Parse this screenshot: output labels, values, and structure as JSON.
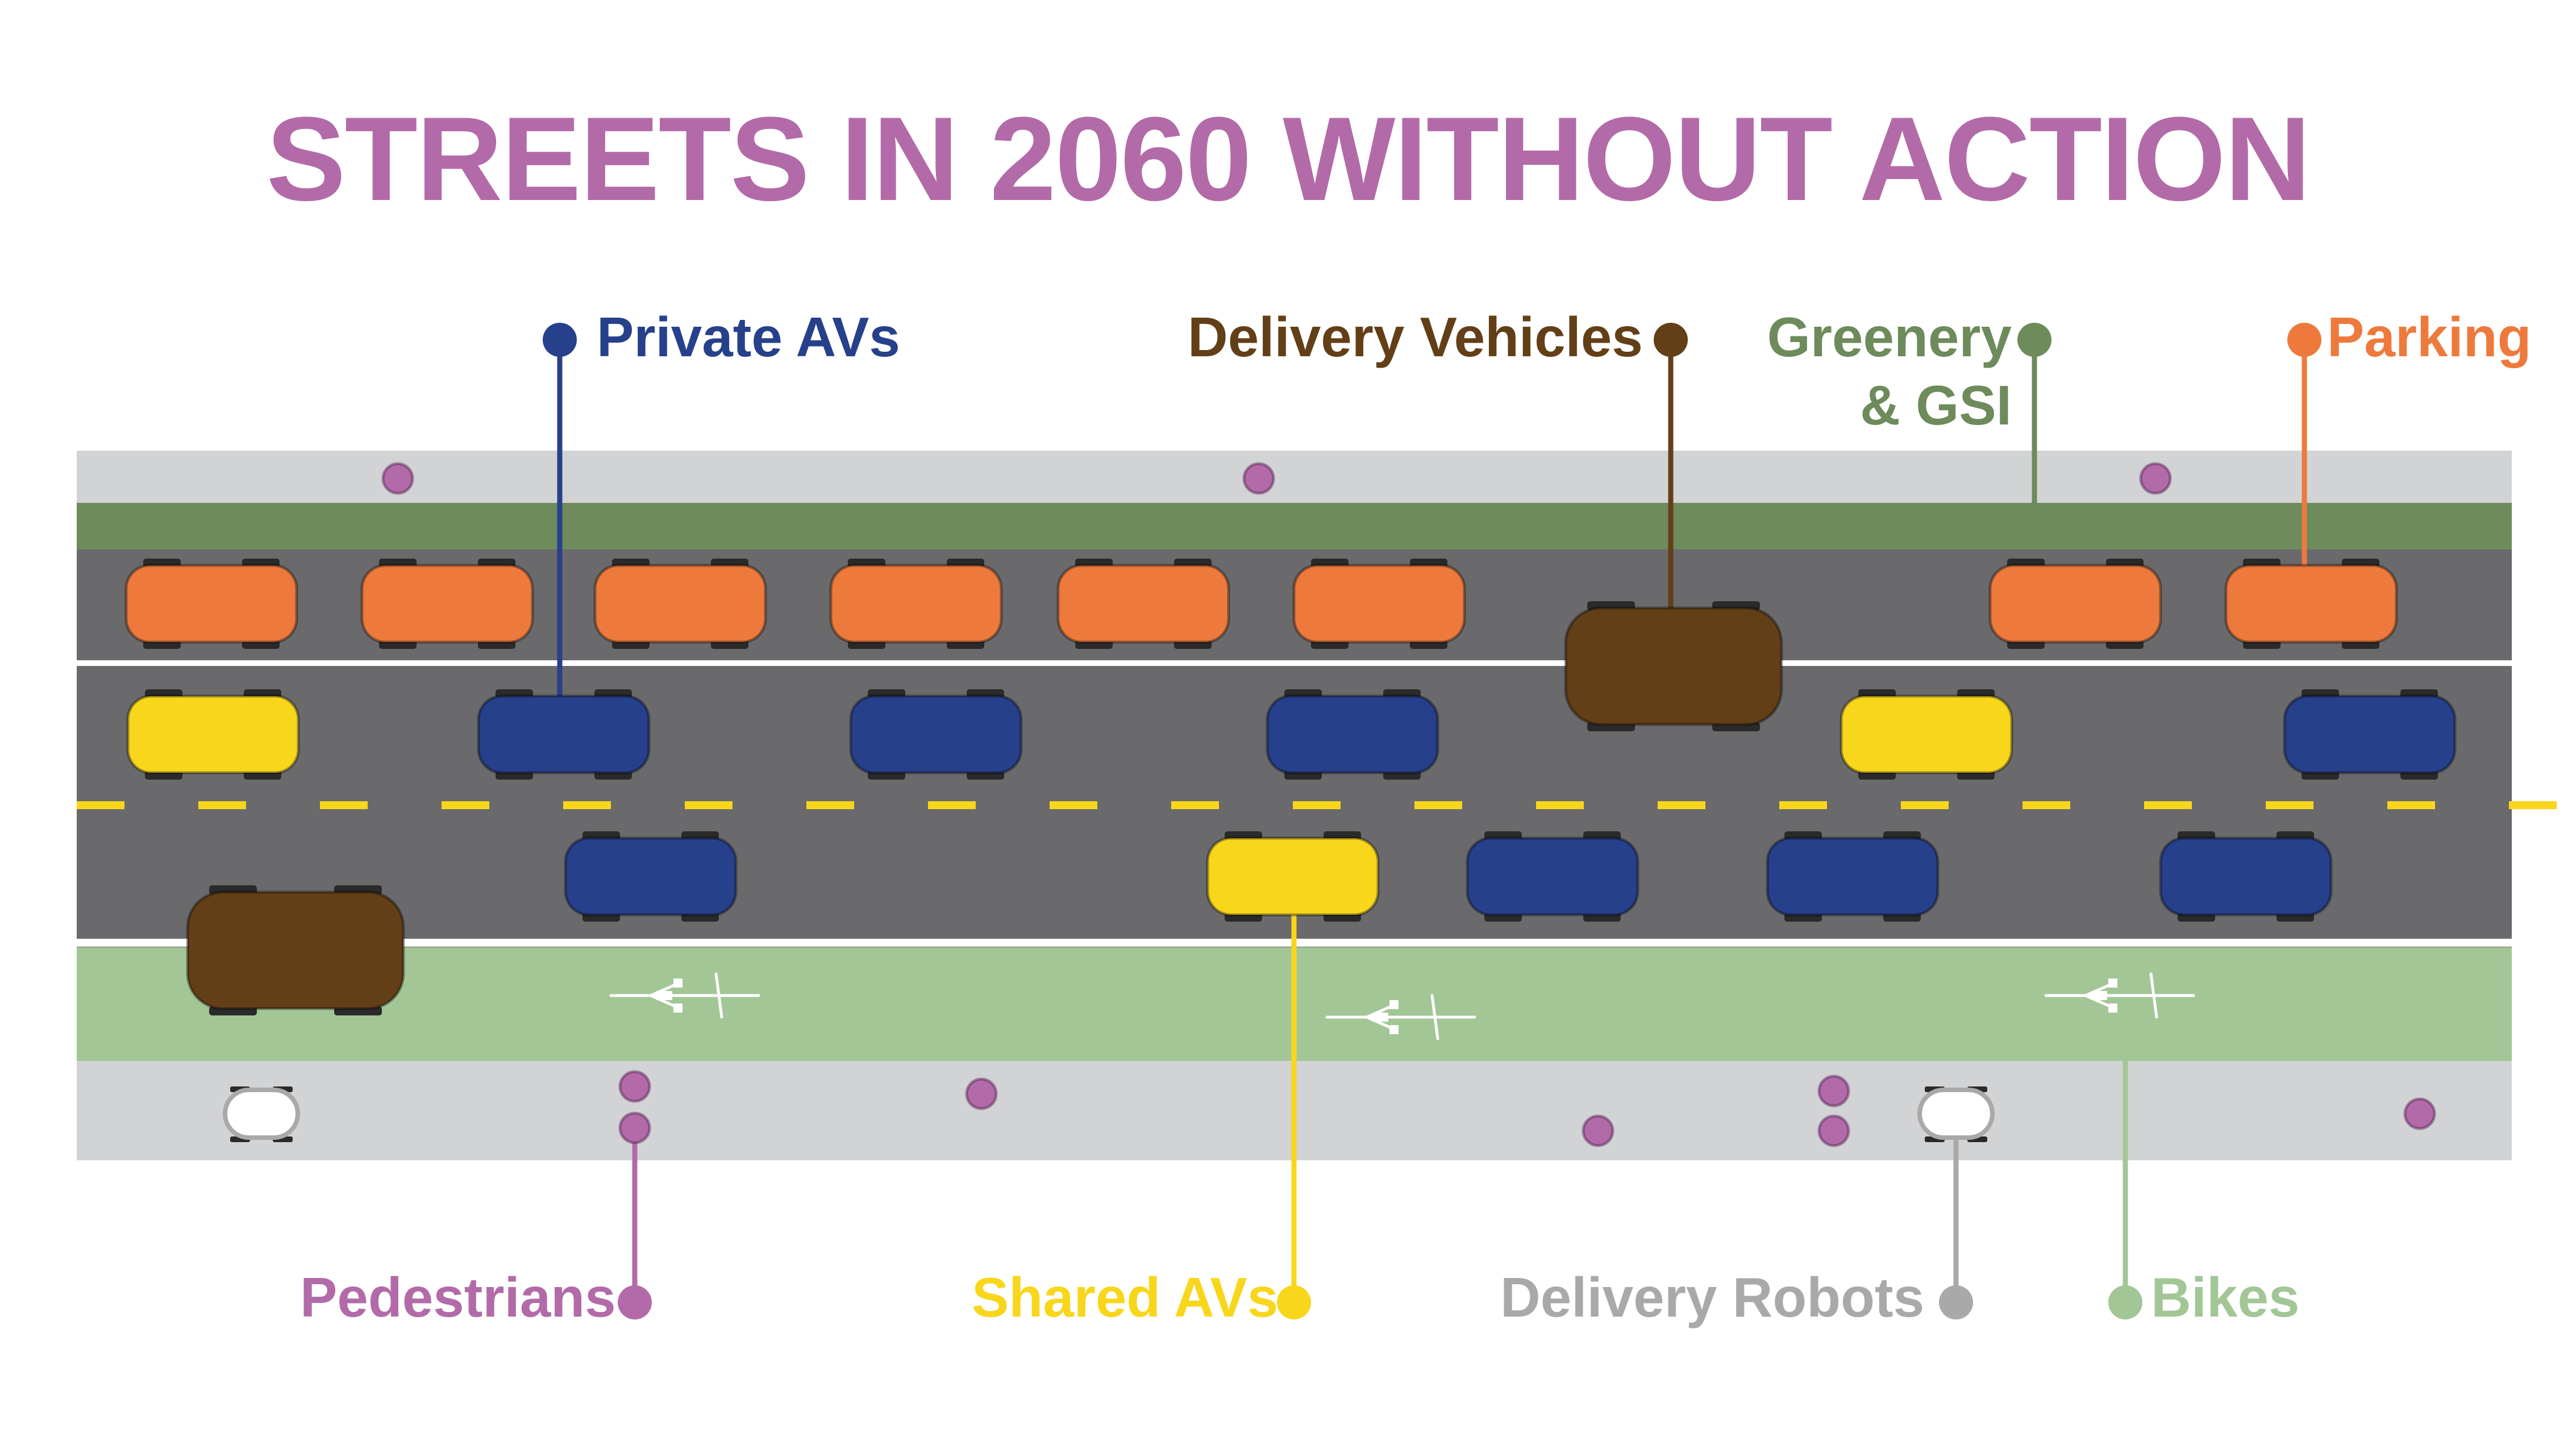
{
  "title": "STREETS IN 2060 WITHOUT ACTION",
  "colors": {
    "title": "#B26BA8",
    "private_avs": "#27408B",
    "delivery_vehicles": "#633F17",
    "greenery": "#6D8B5B",
    "parking": "#ED7A3C",
    "pedestrians": "#B26BA8",
    "shared_avs": "#F8D61C",
    "delivery_robots": "#A9A9A9",
    "bikes": "#A3C696",
    "road": "#6A6A6C",
    "sidewalk": "#D2D3D5",
    "bike_lane": "#A3C696"
  },
  "labels": {
    "private_avs": "Private AVs",
    "delivery_vehicles": "Delivery Vehicles",
    "greenery_line1": "Greenery",
    "greenery_line2": "& GSI",
    "parking": "Parking",
    "pedestrians": "Pedestrians",
    "shared_avs": "Shared AVs",
    "delivery_robots": "Delivery Robots",
    "bikes": "Bikes"
  },
  "icons": [
    "bike-lane-symbol-icon"
  ]
}
